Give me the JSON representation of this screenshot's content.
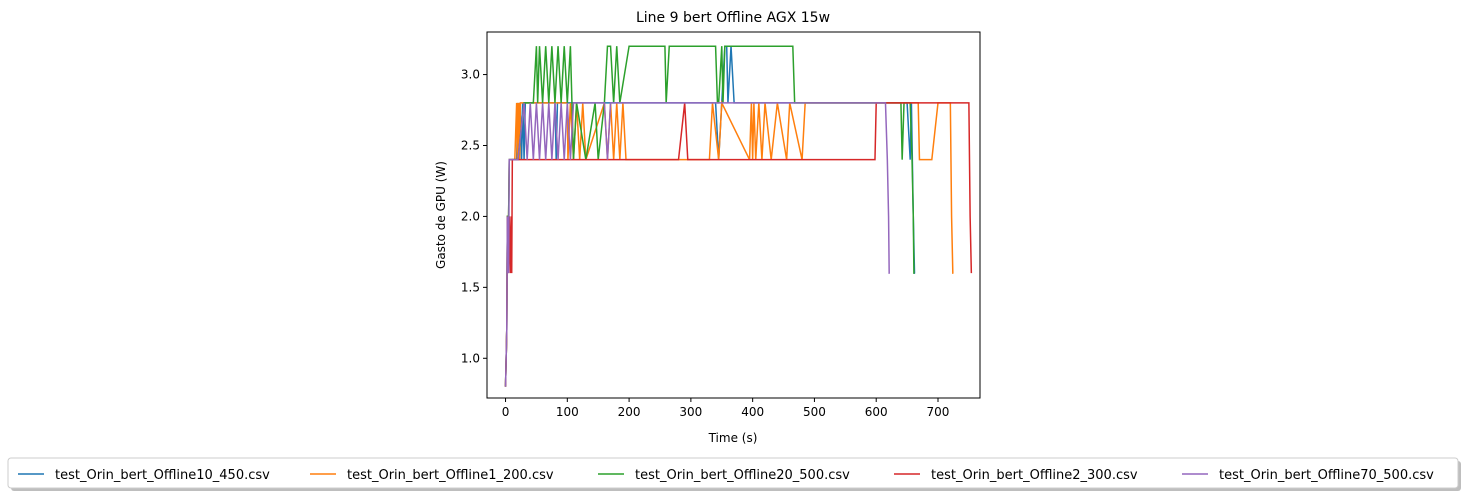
{
  "chart_data": {
    "type": "line",
    "title": "Line 9 bert Offline AGX 15w",
    "xlabel": "Time (s)",
    "ylabel": "Gasto de GPU (W)",
    "xlim": [
      -30,
      768
    ],
    "ylim": [
      0.72,
      3.3
    ],
    "xticks": [
      0,
      100,
      200,
      300,
      400,
      500,
      600,
      700
    ],
    "yticks": [
      1.0,
      1.5,
      2.0,
      2.5,
      3.0
    ],
    "ytick_labels": [
      "1.0",
      "1.5",
      "2.0",
      "2.5",
      "3.0"
    ],
    "grid": false,
    "legend_position": "bottom-center",
    "series": [
      {
        "name": "test_Orin_bert_Offline10_450.csv",
        "color": "#1f77b4",
        "x": [
          0,
          2,
          3,
          5,
          6,
          8,
          10,
          18,
          20,
          22,
          24,
          26,
          28,
          30,
          32,
          40,
          60,
          80,
          82,
          84,
          86,
          100,
          150,
          200,
          250,
          300,
          340,
          345,
          350,
          355,
          358,
          360,
          365,
          370,
          400,
          450,
          500,
          550,
          600,
          650,
          655,
          657,
          660,
          662,
          663
        ],
        "values": [
          0.8,
          1.2,
          2.0,
          2.0,
          2.4,
          2.4,
          2.4,
          2.4,
          2.8,
          2.4,
          2.8,
          2.4,
          2.8,
          2.4,
          2.8,
          2.8,
          2.8,
          2.8,
          2.4,
          2.8,
          2.8,
          2.8,
          2.8,
          2.8,
          2.8,
          2.8,
          2.8,
          2.4,
          2.8,
          3.2,
          3.2,
          2.8,
          3.2,
          2.8,
          2.8,
          2.8,
          2.8,
          2.8,
          2.8,
          2.8,
          2.4,
          2.8,
          2.0,
          1.6,
          1.6
        ]
      },
      {
        "name": "test_Orin_bert_Offline1_200.csv",
        "color": "#ff7f0e",
        "x": [
          0,
          2,
          3,
          5,
          6,
          10,
          15,
          18,
          19,
          20,
          21,
          22,
          23,
          24,
          30,
          60,
          100,
          101,
          105,
          110,
          115,
          120,
          125,
          130,
          160,
          165,
          170,
          175,
          180,
          185,
          190,
          195,
          200,
          250,
          300,
          330,
          335,
          345,
          350,
          395,
          398,
          400,
          402,
          405,
          410,
          415,
          420,
          430,
          440,
          455,
          460,
          480,
          485,
          500,
          600,
          650,
          668,
          670,
          690,
          700,
          720,
          722,
          724,
          725
        ],
        "values": [
          0.8,
          1.2,
          2.0,
          2.0,
          2.4,
          2.4,
          2.4,
          2.8,
          2.4,
          2.8,
          2.4,
          2.8,
          2.4,
          2.8,
          2.8,
          2.8,
          2.8,
          2.4,
          2.8,
          2.4,
          2.8,
          2.4,
          2.8,
          2.4,
          2.8,
          2.4,
          2.8,
          2.4,
          2.8,
          2.4,
          2.8,
          2.4,
          2.4,
          2.4,
          2.4,
          2.4,
          2.8,
          2.4,
          2.8,
          2.4,
          2.8,
          2.4,
          2.8,
          2.4,
          2.8,
          2.4,
          2.8,
          2.4,
          2.8,
          2.4,
          2.8,
          2.4,
          2.8,
          2.8,
          2.8,
          2.8,
          2.8,
          2.4,
          2.4,
          2.8,
          2.8,
          2.0,
          1.6,
          1.6
        ]
      },
      {
        "name": "test_Orin_bert_Offline20_500.csv",
        "color": "#2ca02c",
        "x": [
          0,
          2,
          3,
          5,
          6,
          10,
          20,
          30,
          45,
          50,
          52,
          55,
          60,
          65,
          70,
          75,
          80,
          85,
          90,
          95,
          100,
          105,
          110,
          115,
          130,
          145,
          150,
          160,
          165,
          170,
          175,
          180,
          185,
          200,
          258,
          260,
          265,
          300,
          340,
          343,
          345,
          350,
          352,
          355,
          400,
          465,
          468,
          500,
          550,
          600,
          620,
          640,
          642,
          645,
          655,
          658,
          660,
          661,
          662
        ],
        "values": [
          0.8,
          1.2,
          2.0,
          2.0,
          2.4,
          2.4,
          2.4,
          2.8,
          2.8,
          3.2,
          2.8,
          3.2,
          2.8,
          3.2,
          2.8,
          3.2,
          2.8,
          3.2,
          2.8,
          3.2,
          2.8,
          3.2,
          2.4,
          2.8,
          2.4,
          2.8,
          2.4,
          2.8,
          3.2,
          3.2,
          2.8,
          3.2,
          2.8,
          3.2,
          3.2,
          2.8,
          3.2,
          3.2,
          3.2,
          2.8,
          2.8,
          3.2,
          2.8,
          3.2,
          3.2,
          3.2,
          2.8,
          2.8,
          2.8,
          2.8,
          2.8,
          2.8,
          2.4,
          2.8,
          2.8,
          2.4,
          2.0,
          1.6,
          1.6
        ]
      },
      {
        "name": "test_Orin_bert_Offline2_300.csv",
        "color": "#d62728",
        "x": [
          0,
          2,
          3,
          5,
          6,
          8,
          9,
          10,
          11,
          12,
          14,
          20,
          50,
          80,
          100,
          110,
          130,
          150,
          200,
          250,
          280,
          290,
          295,
          300,
          350,
          400,
          450,
          500,
          550,
          598,
          600,
          650,
          700,
          750,
          752,
          754
        ],
        "values": [
          0.8,
          1.2,
          2.0,
          1.6,
          2.0,
          1.6,
          2.0,
          1.6,
          2.4,
          2.4,
          2.4,
          2.4,
          2.4,
          2.4,
          2.4,
          2.4,
          2.4,
          2.4,
          2.4,
          2.4,
          2.4,
          2.8,
          2.4,
          2.4,
          2.4,
          2.4,
          2.4,
          2.4,
          2.4,
          2.4,
          2.8,
          2.8,
          2.8,
          2.8,
          2.0,
          1.6
        ]
      },
      {
        "name": "test_Orin_bert_Offline70_500.csv",
        "color": "#9467bd",
        "x": [
          0,
          2,
          3,
          5,
          6,
          10,
          20,
          30,
          35,
          40,
          45,
          50,
          55,
          60,
          65,
          70,
          75,
          80,
          85,
          90,
          95,
          100,
          105,
          110,
          140,
          150,
          160,
          165,
          170,
          200,
          250,
          300,
          350,
          400,
          450,
          500,
          550,
          600,
          615,
          618,
          620,
          621,
          622
        ],
        "values": [
          0.8,
          1.2,
          2.0,
          1.6,
          2.4,
          2.4,
          2.4,
          2.8,
          2.4,
          2.8,
          2.4,
          2.8,
          2.4,
          2.8,
          2.4,
          2.8,
          2.4,
          2.8,
          2.4,
          2.8,
          2.4,
          2.8,
          2.4,
          2.8,
          2.8,
          2.8,
          2.8,
          2.4,
          2.8,
          2.8,
          2.8,
          2.8,
          2.8,
          2.8,
          2.8,
          2.8,
          2.8,
          2.8,
          2.8,
          2.4,
          2.0,
          1.6,
          1.6
        ]
      }
    ]
  }
}
